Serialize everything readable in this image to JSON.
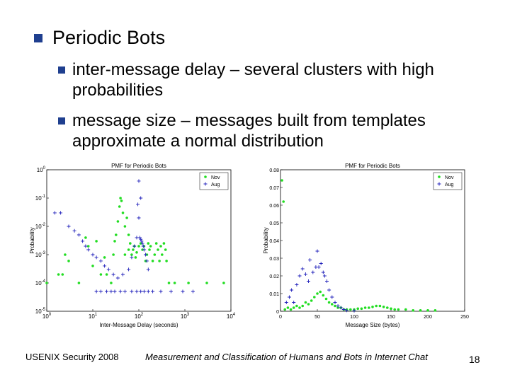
{
  "slide": {
    "heading": "Periodic Bots",
    "bullets": [
      "inter-message delay – several clusters with high probabilities",
      "message size – messages built from templates approximate a normal distribution"
    ],
    "footer_left": "USENIX Security 2008",
    "footer_center": "Measurement and Classification of Humans and Bots in Internet Chat",
    "page_number": "18"
  },
  "colors": {
    "bullet": "#1f3f8f",
    "nov": "#22dd22",
    "aug": "#2222bb"
  },
  "chart_data": [
    {
      "type": "scatter",
      "title": "PMF for Periodic Bots",
      "xlabel": "Inter-Message Delay (seconds)",
      "ylabel": "Probability",
      "xscale": "log",
      "yscale": "log",
      "xlim": [
        1,
        10000
      ],
      "ylim": [
        1e-05,
        1
      ],
      "xtick_labels": [
        "10^0",
        "10^1",
        "10^2",
        "10^3",
        "10^4"
      ],
      "ytick_labels": [
        "10^-5",
        "10^-4",
        "10^-3",
        "10^-2",
        "10^-1",
        "10^0"
      ],
      "legend": "top-right",
      "series": [
        {
          "name": "Nov",
          "marker": "dot",
          "points": [
            [
              1.0,
              0.0001
            ],
            [
              1.8,
              0.0002
            ],
            [
              2.2,
              0.0002
            ],
            [
              2.5,
              0.001
            ],
            [
              3,
              0.0006
            ],
            [
              5,
              0.0001
            ],
            [
              7,
              0.004
            ],
            [
              8,
              0.002
            ],
            [
              10,
              0.0004
            ],
            [
              12,
              0.003
            ],
            [
              15,
              0.0002
            ],
            [
              18,
              0.0008
            ],
            [
              20,
              0.0002
            ],
            [
              25,
              0.0001
            ],
            [
              28,
              0.001
            ],
            [
              30,
              0.003
            ],
            [
              32,
              0.005
            ],
            [
              35,
              0.015
            ],
            [
              38,
              0.05
            ],
            [
              40,
              0.1
            ],
            [
              42,
              0.08
            ],
            [
              45,
              0.03
            ],
            [
              50,
              0.01
            ],
            [
              50,
              0.001
            ],
            [
              55,
              0.02
            ],
            [
              60,
              0.005
            ],
            [
              60,
              0.0015
            ],
            [
              65,
              0.0025
            ],
            [
              70,
              0.001
            ],
            [
              75,
              0.0015
            ],
            [
              80,
              0.002
            ],
            [
              85,
              0.0008
            ],
            [
              90,
              0.0012
            ],
            [
              100,
              0.002
            ],
            [
              110,
              0.0025
            ],
            [
              120,
              0.0015
            ],
            [
              130,
              0.002
            ],
            [
              140,
              0.0006
            ],
            [
              150,
              0.001
            ],
            [
              160,
              0.0025
            ],
            [
              170,
              0.0015
            ],
            [
              180,
              0.002
            ],
            [
              200,
              0.0006
            ],
            [
              220,
              0.001
            ],
            [
              240,
              0.0025
            ],
            [
              260,
              0.0015
            ],
            [
              280,
              0.0006
            ],
            [
              300,
              0.002
            ],
            [
              320,
              0.001
            ],
            [
              350,
              0.0025
            ],
            [
              380,
              0.0015
            ],
            [
              400,
              0.0006
            ],
            [
              450,
              0.0001
            ],
            [
              600,
              0.0001
            ],
            [
              1200,
              0.0001
            ],
            [
              3000,
              0.0001
            ],
            [
              7000,
              0.0001
            ]
          ]
        },
        {
          "name": "Aug",
          "marker": "plus",
          "points": [
            [
              1.5,
              0.03
            ],
            [
              2,
              0.03
            ],
            [
              3,
              0.01
            ],
            [
              4,
              0.007
            ],
            [
              5,
              0.005
            ],
            [
              6,
              0.003
            ],
            [
              7,
              0.002
            ],
            [
              8,
              0.0015
            ],
            [
              10,
              0.001
            ],
            [
              12,
              0.0008
            ],
            [
              15,
              0.0006
            ],
            [
              18,
              0.0004
            ],
            [
              22,
              0.0003
            ],
            [
              28,
              0.0002
            ],
            [
              35,
              0.00015
            ],
            [
              45,
              0.0002
            ],
            [
              60,
              0.0003
            ],
            [
              70,
              0.0008
            ],
            [
              80,
              0.002
            ],
            [
              90,
              0.004
            ],
            [
              95,
              0.06
            ],
            [
              100,
              0.02
            ],
            [
              105,
              0.004
            ],
            [
              110,
              0.0035
            ],
            [
              115,
              0.003
            ],
            [
              120,
              0.0025
            ],
            [
              125,
              0.002
            ],
            [
              130,
              0.0015
            ],
            [
              140,
              0.001
            ],
            [
              150,
              0.0006
            ],
            [
              160,
              0.0003
            ],
            [
              100,
              0.4
            ],
            [
              110,
              0.1
            ],
            [
              12,
              5e-05
            ],
            [
              15,
              5e-05
            ],
            [
              20,
              5e-05
            ],
            [
              25,
              5e-05
            ],
            [
              30,
              5e-05
            ],
            [
              40,
              5e-05
            ],
            [
              50,
              5e-05
            ],
            [
              70,
              5e-05
            ],
            [
              90,
              5e-05
            ],
            [
              110,
              5e-05
            ],
            [
              130,
              5e-05
            ],
            [
              160,
              5e-05
            ],
            [
              200,
              5e-05
            ],
            [
              300,
              5e-05
            ],
            [
              500,
              5e-05
            ],
            [
              900,
              5e-05
            ],
            [
              1500,
              5e-05
            ]
          ]
        }
      ]
    },
    {
      "type": "scatter",
      "title": "PMF for Periodic Bots",
      "xlabel": "Message Size (bytes)",
      "ylabel": "Probability",
      "xlim": [
        0,
        250
      ],
      "ylim": [
        0,
        0.08
      ],
      "xticks": [
        0,
        50,
        100,
        150,
        200,
        250
      ],
      "yticks": [
        0,
        0.01,
        0.02,
        0.03,
        0.04,
        0.05,
        0.06,
        0.07,
        0.08
      ],
      "legend": "top-right",
      "series": [
        {
          "name": "Nov",
          "marker": "dot",
          "points": [
            [
              2,
              0.074
            ],
            [
              4,
              0.062
            ],
            [
              6,
              0.001
            ],
            [
              10,
              0.002
            ],
            [
              14,
              0.001
            ],
            [
              18,
              0.002
            ],
            [
              22,
              0.003
            ],
            [
              26,
              0.002
            ],
            [
              30,
              0.003
            ],
            [
              34,
              0.005
            ],
            [
              38,
              0.004
            ],
            [
              42,
              0.006
            ],
            [
              46,
              0.008
            ],
            [
              50,
              0.01
            ],
            [
              54,
              0.011
            ],
            [
              58,
              0.009
            ],
            [
              62,
              0.007
            ],
            [
              66,
              0.005
            ],
            [
              70,
              0.004
            ],
            [
              74,
              0.003
            ],
            [
              78,
              0.002
            ],
            [
              82,
              0.002
            ],
            [
              86,
              0.001
            ],
            [
              90,
              0.001
            ],
            [
              95,
              0.001
            ],
            [
              100,
              0.001
            ],
            [
              105,
              0.0015
            ],
            [
              110,
              0.0015
            ],
            [
              115,
              0.002
            ],
            [
              120,
              0.002
            ],
            [
              125,
              0.0025
            ],
            [
              130,
              0.003
            ],
            [
              135,
              0.003
            ],
            [
              140,
              0.0025
            ],
            [
              145,
              0.002
            ],
            [
              150,
              0.0015
            ],
            [
              155,
              0.001
            ],
            [
              160,
              0.001
            ],
            [
              170,
              0.001
            ],
            [
              180,
              0.0005
            ],
            [
              190,
              0.0005
            ],
            [
              200,
              0.0005
            ],
            [
              210,
              0.0005
            ]
          ]
        },
        {
          "name": "Aug",
          "marker": "plus",
          "points": [
            [
              8,
              0.005
            ],
            [
              12,
              0.008
            ],
            [
              15,
              0.012
            ],
            [
              18,
              0.005
            ],
            [
              22,
              0.015
            ],
            [
              26,
              0.02
            ],
            [
              30,
              0.024
            ],
            [
              34,
              0.021
            ],
            [
              38,
              0.017
            ],
            [
              40,
              0.029
            ],
            [
              44,
              0.022
            ],
            [
              48,
              0.025
            ],
            [
              50,
              0.034
            ],
            [
              52,
              0.025
            ],
            [
              55,
              0.027
            ],
            [
              58,
              0.022
            ],
            [
              60,
              0.02
            ],
            [
              63,
              0.017
            ],
            [
              66,
              0.012
            ],
            [
              70,
              0.008
            ],
            [
              74,
              0.005
            ],
            [
              78,
              0.003
            ],
            [
              82,
              0.002
            ],
            [
              86,
              0.001
            ],
            [
              90,
              0.0005
            ],
            [
              100,
              0.0003
            ]
          ]
        }
      ]
    }
  ]
}
